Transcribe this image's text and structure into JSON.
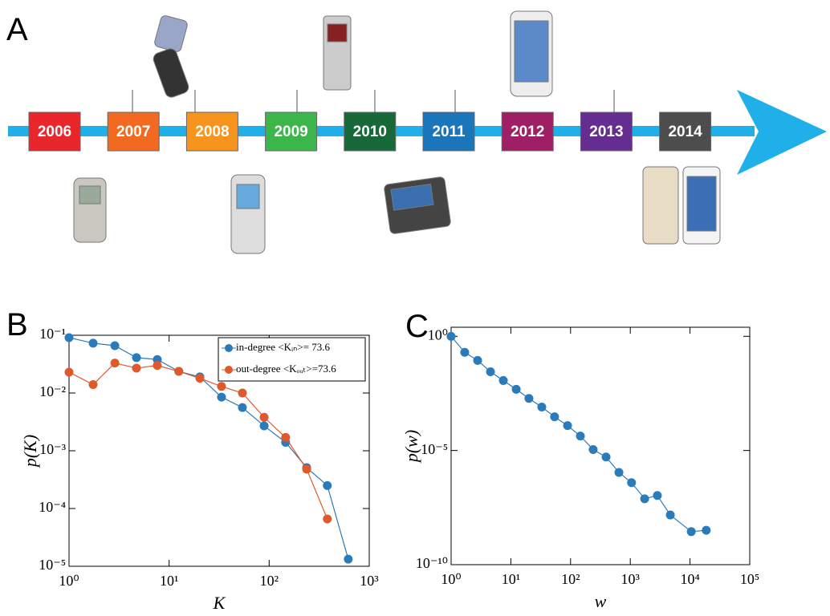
{
  "timeline": {
    "label": "A",
    "years": [
      {
        "label": "2006",
        "color": "#e8262b"
      },
      {
        "label": "2007",
        "color": "#f26a21"
      },
      {
        "label": "2008",
        "color": "#f7941d"
      },
      {
        "label": "2009",
        "color": "#3cb54a"
      },
      {
        "label": "2010",
        "color": "#17693a"
      },
      {
        "label": "2011",
        "color": "#1b75bb"
      },
      {
        "label": "2012",
        "color": "#9e1f63"
      },
      {
        "label": "2013",
        "color": "#662d91"
      },
      {
        "label": "2014",
        "color": "#4d4d4d"
      }
    ],
    "arrow_color": "#1fb0ea"
  },
  "chart_data": [
    {
      "type": "line",
      "label": "B",
      "xlabel": "K",
      "ylabel": "p(K)",
      "xscale": "log",
      "yscale": "log",
      "xlim": [
        1,
        1000
      ],
      "ylim": [
        1e-05,
        0.1
      ],
      "xticks": [
        {
          "value": 1,
          "label": "10⁰"
        },
        {
          "value": 10,
          "label": "10¹"
        },
        {
          "value": 100,
          "label": "10²"
        },
        {
          "value": 1000,
          "label": "10³"
        }
      ],
      "yticks": [
        {
          "value": 1e-05,
          "label": "10⁻⁵"
        },
        {
          "value": 0.0001,
          "label": "10⁻⁴"
        },
        {
          "value": 0.001,
          "label": "10⁻³"
        },
        {
          "value": 0.01,
          "label": "10⁻²"
        },
        {
          "value": 0.1,
          "label": "10⁻¹"
        }
      ],
      "legend": "upper right",
      "x": [
        1,
        1.74,
        2.87,
        4.72,
        7.62,
        12.5,
        20.3,
        33.4,
        54,
        89,
        146,
        237,
        381,
        617
      ],
      "series": [
        {
          "name": "in-degree <Kᵢₙ>= 73.6",
          "color": "#2b7bba",
          "values": [
            0.091,
            0.073,
            0.066,
            0.041,
            0.038,
            0.0237,
            0.019,
            0.0085,
            0.0056,
            0.0027,
            0.0014,
            0.00051,
            0.00025,
            1.33e-05
          ]
        },
        {
          "name": "out-degree <Kₒᵤₜ>=73.6",
          "color": "#e0592a",
          "values": [
            0.023,
            0.014,
            0.033,
            0.027,
            0.03,
            0.0237,
            0.018,
            0.013,
            0.01,
            0.0038,
            0.0017,
            0.00048,
            6.6e-05,
            null
          ]
        }
      ]
    },
    {
      "type": "line",
      "label": "C",
      "xlabel": "w",
      "ylabel": "p(w)",
      "xscale": "log",
      "yscale": "log",
      "xlim": [
        1,
        100000
      ],
      "ylim": [
        1e-10,
        2.5
      ],
      "xticks": [
        {
          "value": 1,
          "label": "10⁰"
        },
        {
          "value": 10,
          "label": "10¹"
        },
        {
          "value": 100,
          "label": "10²"
        },
        {
          "value": 1000,
          "label": "10³"
        },
        {
          "value": 10000,
          "label": "10⁴"
        },
        {
          "value": 100000,
          "label": "10⁵"
        }
      ],
      "yticks": [
        {
          "value": 1e-10,
          "label": "10⁻¹⁰"
        },
        {
          "value": 1e-05,
          "label": "10⁻⁵"
        },
        {
          "value": 1,
          "label": "10⁰"
        }
      ],
      "x": [
        1,
        1.69,
        2.78,
        4.56,
        7.48,
        12.3,
        20.1,
        33,
        54,
        89,
        146,
        239,
        393,
        645,
        1050,
        1740,
        2840,
        4680,
        10500,
        18700
      ],
      "series": [
        {
          "color": "#2b7bba",
          "values": [
            1,
            0.2,
            0.088,
            0.028,
            0.0116,
            0.0048,
            0.0019,
            0.0008,
            0.0003,
            0.000123,
            4.3e-05,
            1.1e-05,
            5.2e-06,
            1.1e-06,
            3.9e-07,
            7.7e-08,
            1.07e-07,
            1.5e-08,
            2.8e-09,
            3.2e-09
          ]
        }
      ]
    }
  ]
}
